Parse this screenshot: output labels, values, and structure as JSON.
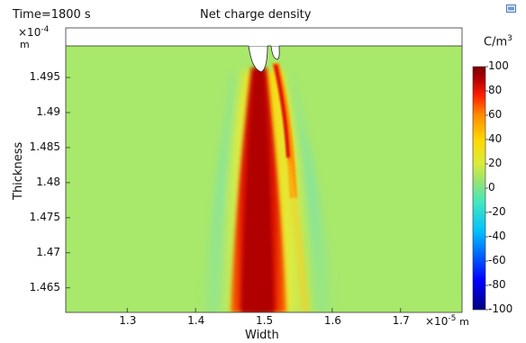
{
  "chart_data": {
    "type": "heatmap",
    "time_label": "Time=1800 s",
    "title": "Net charge density",
    "xlabel": "Width",
    "ylabel": "Thickness",
    "x_exponent": "×10",
    "x_exponent_power": "-5",
    "x_unit": "m",
    "y_exponent": "×10",
    "y_exponent_power": "-4",
    "y_unit": "m",
    "colorbar_unit": "C/m",
    "colorbar_unit_power": "3",
    "xlim": [
      1.21,
      1.79
    ],
    "ylim": [
      1.4615,
      1.4995
    ],
    "clim": [
      -100,
      100
    ],
    "x_ticks": [
      {
        "value": 1.3,
        "label": "1.3"
      },
      {
        "value": 1.4,
        "label": "1.4"
      },
      {
        "value": 1.5,
        "label": "1.5"
      },
      {
        "value": 1.6,
        "label": "1.6"
      },
      {
        "value": 1.7,
        "label": "1.7"
      }
    ],
    "y_ticks": [
      {
        "value": 1.465,
        "label": "1.465"
      },
      {
        "value": 1.47,
        "label": "1.47"
      },
      {
        "value": 1.475,
        "label": "1.475"
      },
      {
        "value": 1.48,
        "label": "1.48"
      },
      {
        "value": 1.485,
        "label": "1.485"
      },
      {
        "value": 1.49,
        "label": "1.49"
      },
      {
        "value": 1.495,
        "label": "1.495"
      }
    ],
    "colorbar_ticks": [
      {
        "value": 100,
        "label": "100"
      },
      {
        "value": 80,
        "label": "80"
      },
      {
        "value": 60,
        "label": "60"
      },
      {
        "value": 40,
        "label": "40"
      },
      {
        "value": 20,
        "label": "20"
      },
      {
        "value": 0,
        "label": "0"
      },
      {
        "value": -20,
        "label": "-20"
      },
      {
        "value": -40,
        "label": "-40"
      },
      {
        "value": -60,
        "label": "-60"
      },
      {
        "value": -80,
        "label": "-80"
      },
      {
        "value": -100,
        "label": "-100"
      }
    ],
    "colormap": [
      "#00007f",
      "#0000ff",
      "#00bfff",
      "#40e8c0",
      "#8fe37a",
      "#d9ec3a",
      "#ffd700",
      "#ff8c00",
      "#ff2000",
      "#b00000",
      "#7a0000"
    ],
    "background_value": 10,
    "charge_regions": [
      {
        "shape": "primary-plume",
        "value": 100
      },
      {
        "shape": "plume-halo",
        "value": 45
      },
      {
        "shape": "secondary-streak",
        "value": 60
      }
    ]
  }
}
